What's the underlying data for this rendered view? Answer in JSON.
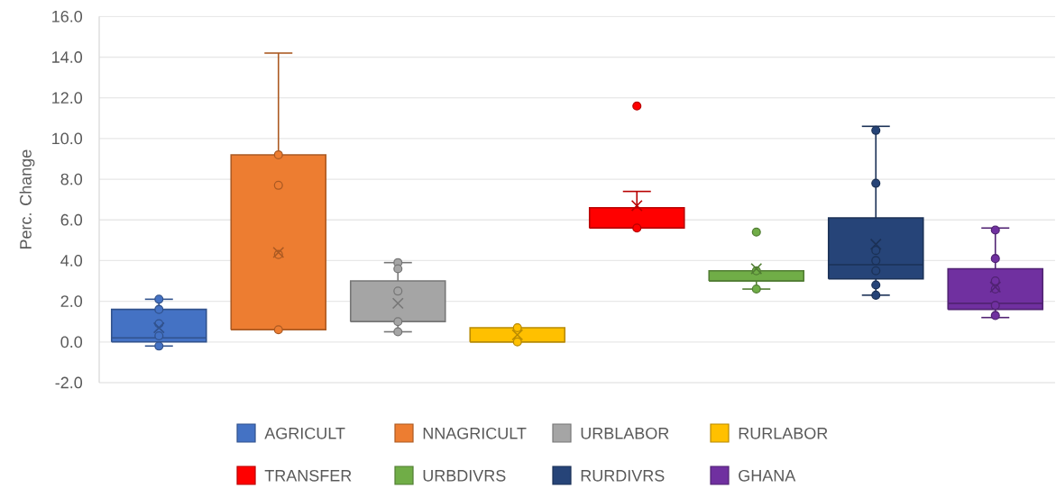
{
  "chart_data": {
    "type": "box",
    "ylabel": "Perc. Change",
    "categories": [
      null,
      null,
      null,
      null,
      null,
      null,
      null,
      null
    ],
    "ylim": [
      -2,
      16
    ],
    "yticks": [
      {
        "value": -2,
        "label": "-2.0"
      },
      {
        "value": 0,
        "label": "0.0"
      },
      {
        "value": 2,
        "label": "2.0"
      },
      {
        "value": 4,
        "label": "4.0"
      },
      {
        "value": 6,
        "label": "6.0"
      },
      {
        "value": 8,
        "label": "8.0"
      },
      {
        "value": 10,
        "label": "10.0"
      },
      {
        "value": 12,
        "label": "12.0"
      },
      {
        "value": 14,
        "label": "14.0"
      },
      {
        "value": 16,
        "label": "16.0"
      }
    ],
    "grid": "y",
    "legend": "bottom",
    "marker": "circle",
    "tick_labels": "y",
    "series": [
      {
        "name": "AGRICULT",
        "color": "#4472c4",
        "boxes": [
          {
            "low": -0.2,
            "q1": 0.0,
            "median": 0.2,
            "q3": 1.6,
            "high": 2.1,
            "mean": 0.7
          },
          null,
          null,
          null,
          null,
          null,
          null,
          null
        ]
      },
      {
        "name": "NNAGRICULT",
        "color": "#ed7d31",
        "boxes": [
          null,
          {
            "low": 0.6,
            "q1": 0.6,
            "median": 0.6,
            "q3": 9.2,
            "high": 14.2,
            "mean": 4.4
          },
          null,
          null,
          null,
          null,
          null,
          null
        ]
      },
      {
        "name": "URBLABOR",
        "color": "#a5a5a5",
        "boxes": [
          null,
          null,
          {
            "low": 0.5,
            "q1": 1.0,
            "median": 1.0,
            "q3": 3.0,
            "high": 3.9,
            "mean": 1.9
          },
          null,
          null,
          null,
          null,
          null
        ]
      },
      {
        "name": "RURLABOR",
        "color": "#ffc000",
        "boxes": [
          null,
          null,
          null,
          {
            "low": 0.0,
            "q1": 0.0,
            "median": 0.0,
            "q3": 0.7,
            "high": 0.7,
            "mean": 0.35
          },
          null,
          null,
          null,
          null
        ]
      },
      {
        "name": "TRANSFER",
        "color": "#ff0000",
        "boxes": [
          null,
          null,
          null,
          null,
          {
            "low": 5.6,
            "q1": 5.6,
            "median": 5.6,
            "q3": 6.6,
            "high": 7.4,
            "mean": 6.7,
            "outliers": [
              11.6
            ]
          },
          null,
          null,
          null
        ]
      },
      {
        "name": "URBDIVRS",
        "color": "#70ad47",
        "boxes": [
          null,
          null,
          null,
          null,
          null,
          {
            "low": 2.6,
            "q1": 3.0,
            "median": 3.0,
            "q3": 3.5,
            "high": 3.5,
            "mean": 3.6,
            "outliers": [
              5.4
            ]
          },
          null,
          null
        ]
      },
      {
        "name": "RURDIVRS",
        "color": "#264478",
        "boxes": [
          null,
          null,
          null,
          null,
          null,
          null,
          {
            "low": 2.3,
            "q1": 3.1,
            "median": 3.8,
            "q3": 6.1,
            "high": 10.6,
            "mean": 4.8
          },
          null
        ]
      },
      {
        "name": "GHANA",
        "color": "#7030a0",
        "boxes": [
          null,
          null,
          null,
          null,
          null,
          null,
          null,
          {
            "low": 1.2,
            "q1": 1.6,
            "median": 1.9,
            "q3": 3.6,
            "high": 5.6,
            "mean": 2.7
          }
        ]
      },
      {
        "type": "scatter",
        "colors": [
          "#4472c4",
          "#ed7d31",
          "#a5a5a5",
          "#ffc000",
          "#ff0000",
          "#70ad47",
          "#264478",
          "#7030a0"
        ],
        "values": [
          2.1,
          9.2,
          3.9,
          0.7,
          5.6,
          3.5,
          10.4,
          5.5
        ]
      },
      {
        "type": "scatter",
        "colors": [
          "#4472c4",
          "#ed7d31",
          "#a5a5a5",
          "#ffc000",
          "#ff0000",
          "#70ad47",
          "#264478",
          "#7030a0"
        ],
        "values": [
          1.6,
          7.7,
          3.6,
          0.0,
          null,
          2.6,
          7.8,
          4.1
        ]
      },
      {
        "type": "scatter",
        "colors": [
          "#4472c4",
          "#ed7d31",
          "#a5a5a5",
          "#ffc000",
          "#ff0000",
          "#70ad47",
          "#264478",
          "#7030a0"
        ],
        "values": [
          0.9,
          4.3,
          2.5,
          null,
          null,
          null,
          4.5,
          3.0
        ]
      },
      {
        "type": "scatter",
        "colors": [
          "#4472c4",
          "#ed7d31",
          "#a5a5a5",
          "#ffc000",
          "#ff0000",
          "#70ad47",
          "#264478",
          "#7030a0"
        ],
        "values": [
          0.3,
          0.6,
          1.0,
          null,
          null,
          null,
          4.0,
          2.6
        ]
      },
      {
        "type": "scatter",
        "colors": [
          "#4472c4",
          "#ed7d31",
          "#a5a5a5",
          "#ffc000",
          "#ff0000",
          "#70ad47",
          "#264478",
          "#7030a0"
        ],
        "values": [
          -0.2,
          null,
          0.5,
          null,
          null,
          null,
          3.5,
          1.8
        ]
      },
      {
        "type": "scatter",
        "colors": [
          "#4472c4",
          "#ed7d31",
          "#a5a5a5",
          "#ffc000",
          "#ff0000",
          "#70ad47",
          "#264478",
          "#7030a0"
        ],
        "values": [
          null,
          null,
          null,
          null,
          null,
          null,
          2.8,
          1.3
        ]
      },
      {
        "type": "scatter",
        "colors": [
          "#4472c4",
          "#ed7d31",
          "#a5a5a5",
          "#ffc000",
          "#ff0000",
          "#70ad47",
          "#264478",
          "#7030a0"
        ],
        "values": [
          null,
          null,
          null,
          null,
          null,
          null,
          2.3,
          null
        ]
      }
    ]
  }
}
